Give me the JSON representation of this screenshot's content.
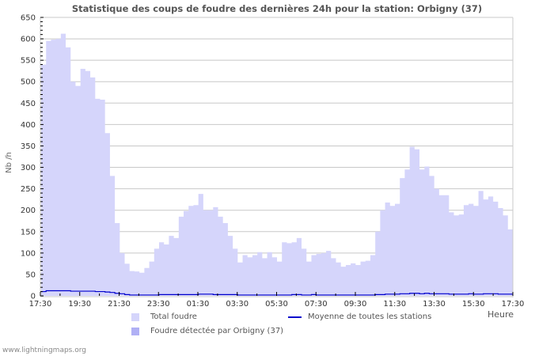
{
  "chart_data": {
    "type": "area",
    "title": "Statistique des coups de foudre des dernières 24h pour la station: Orbigny (37)",
    "xlabel": "Heure",
    "ylabel": "Nb /h",
    "ylim": [
      0,
      650
    ],
    "yticks": [
      0,
      50,
      100,
      150,
      200,
      250,
      300,
      350,
      400,
      450,
      500,
      550,
      600,
      650
    ],
    "xtick_labels": [
      "17:30",
      "19:30",
      "21:30",
      "23:30",
      "01:30",
      "03:30",
      "05:30",
      "07:30",
      "09:30",
      "11:30",
      "13:30",
      "15:30",
      "17:30"
    ],
    "grid": true,
    "legend_position": "bottom",
    "interval_minutes": 15,
    "series": [
      {
        "name": "Total foudre",
        "type": "area",
        "color": "#d5d5fb",
        "values": [
          540,
          595,
          598,
          600,
          612,
          580,
          500,
          490,
          530,
          525,
          510,
          460,
          458,
          380,
          280,
          170,
          100,
          75,
          58,
          57,
          54,
          65,
          80,
          110,
          125,
          120,
          140,
          135,
          185,
          198,
          210,
          212,
          238,
          200,
          200,
          207,
          185,
          170,
          140,
          110,
          78,
          95,
          90,
          95,
          102,
          88,
          102,
          90,
          80,
          125,
          123,
          125,
          135,
          110,
          80,
          95,
          98,
          100,
          105,
          88,
          78,
          68,
          72,
          76,
          72,
          80,
          82,
          95,
          150,
          200,
          218,
          210,
          215,
          275,
          295,
          348,
          342,
          295,
          302,
          280,
          250,
          235,
          235,
          195,
          188,
          190,
          212,
          215,
          210,
          245,
          225,
          232,
          220,
          205,
          188,
          155,
          148
        ]
      },
      {
        "name": "Foudre détectée par Orbigny (37)",
        "type": "area",
        "color": "#b0b0f5",
        "values": [
          0,
          0,
          0,
          0,
          0,
          0,
          0,
          0,
          0,
          0,
          0,
          0,
          0,
          0,
          0,
          0,
          0,
          0,
          0,
          0,
          0,
          0,
          0,
          0,
          0,
          0,
          0,
          0,
          0,
          0,
          0,
          0,
          0,
          0,
          0,
          0,
          0,
          0,
          0,
          0,
          0,
          0,
          0,
          0,
          0,
          0,
          0,
          0,
          0,
          0,
          0,
          0,
          0,
          0,
          0,
          0,
          0,
          0,
          0,
          0,
          0,
          0,
          0,
          0,
          0,
          0,
          0,
          0,
          0,
          0,
          0,
          0,
          0,
          0,
          0,
          0,
          0,
          0,
          0,
          0,
          0,
          0,
          0,
          0,
          0,
          0,
          0,
          0,
          0,
          0,
          0,
          0,
          0,
          0,
          0,
          0,
          0
        ]
      },
      {
        "name": "Moyenne de toutes les stations",
        "type": "line",
        "color": "#0000cc",
        "values": [
          10,
          12,
          12,
          12,
          12,
          12,
          11,
          11,
          11,
          11,
          11,
          10,
          10,
          9,
          8,
          6,
          5,
          3,
          2,
          2,
          2,
          2,
          2,
          2,
          3,
          3,
          3,
          3,
          3,
          3,
          3,
          3,
          4,
          4,
          4,
          3,
          3,
          3,
          3,
          3,
          2,
          2,
          2,
          2,
          2,
          2,
          2,
          2,
          2,
          2,
          2,
          3,
          3,
          2,
          2,
          3,
          2,
          2,
          2,
          2,
          2,
          2,
          2,
          2,
          2,
          2,
          2,
          2,
          3,
          3,
          4,
          4,
          4,
          5,
          5,
          6,
          6,
          5,
          6,
          5,
          5,
          5,
          5,
          4,
          4,
          4,
          4,
          5,
          4,
          4,
          5,
          5,
          5,
          4,
          4,
          4,
          4
        ]
      }
    ]
  },
  "footer": "www.lightningmaps.org"
}
